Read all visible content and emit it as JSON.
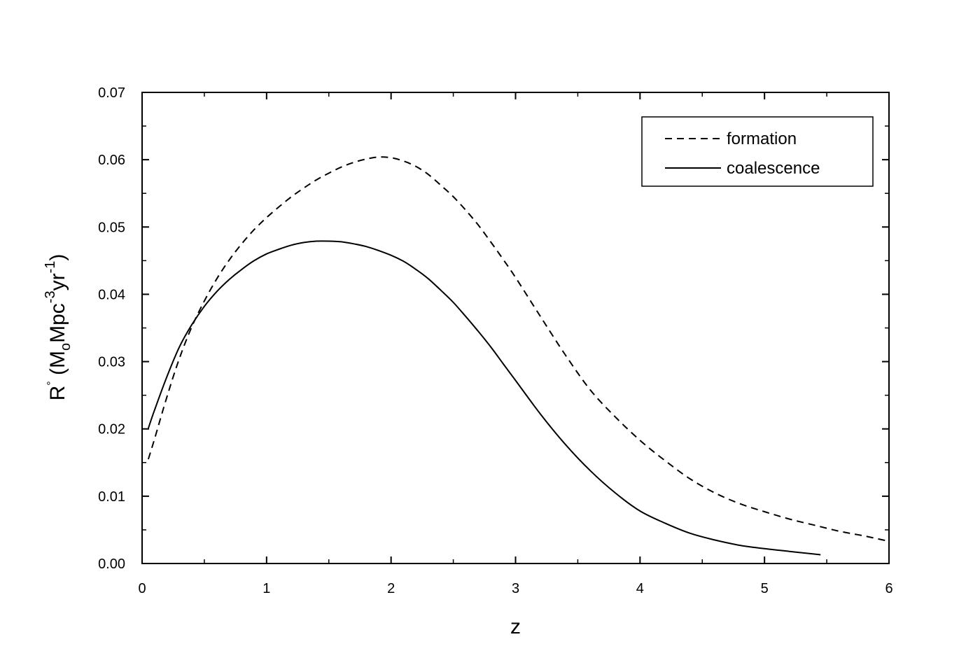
{
  "chart_data": {
    "type": "line",
    "title": "",
    "xlabel": "z",
    "ylabel": {
      "base": "R",
      "sup_dot": "°",
      "open": " (M",
      "sub_o": "o",
      "mid": "Mpc",
      "sup_3": "-3",
      "yr": "yr",
      "sup_1": "-1",
      "close": ")"
    },
    "xlim": [
      0,
      6
    ],
    "ylim": [
      0,
      0.07
    ],
    "x_ticks": [
      0,
      1,
      2,
      3,
      4,
      5,
      6
    ],
    "x_tick_labels": [
      "0",
      "1",
      "2",
      "3",
      "4",
      "5",
      "6"
    ],
    "y_ticks": [
      0,
      0.01,
      0.02,
      0.03,
      0.04,
      0.05,
      0.06,
      0.07
    ],
    "y_tick_labels": [
      "0.00",
      "0.01",
      "0.02",
      "0.03",
      "0.04",
      "0.05",
      "0.06",
      "0.07"
    ],
    "grid": false,
    "legend_position": "top-right",
    "series": [
      {
        "name": "formation",
        "style": "dashed",
        "x": [
          0.05,
          0.1,
          0.2,
          0.3,
          0.4,
          0.5,
          0.6,
          0.7,
          0.8,
          0.9,
          1.0,
          1.1,
          1.2,
          1.3,
          1.4,
          1.5,
          1.6,
          1.7,
          1.8,
          1.9,
          2.0,
          2.1,
          2.2,
          2.3,
          2.4,
          2.5,
          2.6,
          2.7,
          2.8,
          2.9,
          3.0,
          3.2,
          3.4,
          3.6,
          3.8,
          4.0,
          4.2,
          4.4,
          4.6,
          4.8,
          5.0,
          5.2,
          5.4,
          5.6,
          5.8,
          6.0
        ],
        "y": [
          0.0155,
          0.0185,
          0.0248,
          0.0305,
          0.0352,
          0.039,
          0.0423,
          0.0451,
          0.0475,
          0.0496,
          0.0514,
          0.053,
          0.0545,
          0.0558,
          0.057,
          0.058,
          0.0589,
          0.0596,
          0.0601,
          0.0604,
          0.0603,
          0.0598,
          0.059,
          0.0578,
          0.0562,
          0.0545,
          0.0525,
          0.0503,
          0.0478,
          0.0452,
          0.0425,
          0.0367,
          0.031,
          0.0258,
          0.0218,
          0.0183,
          0.0153,
          0.0126,
          0.0105,
          0.0089,
          0.0077,
          0.0066,
          0.0057,
          0.0048,
          0.0041,
          0.0033
        ]
      },
      {
        "name": "coalescence",
        "style": "solid",
        "x": [
          0.05,
          0.1,
          0.2,
          0.3,
          0.4,
          0.5,
          0.6,
          0.7,
          0.8,
          0.9,
          1.0,
          1.1,
          1.2,
          1.3,
          1.4,
          1.5,
          1.6,
          1.7,
          1.8,
          1.9,
          2.0,
          2.1,
          2.2,
          2.3,
          2.4,
          2.5,
          2.6,
          2.7,
          2.8,
          2.9,
          3.0,
          3.2,
          3.4,
          3.6,
          3.8,
          4.0,
          4.2,
          4.4,
          4.6,
          4.8,
          5.0,
          5.2,
          5.4,
          5.45
        ],
        "y": [
          0.0201,
          0.0228,
          0.0278,
          0.0322,
          0.0355,
          0.0382,
          0.0404,
          0.0422,
          0.0437,
          0.045,
          0.046,
          0.0467,
          0.0473,
          0.0477,
          0.0479,
          0.0479,
          0.0478,
          0.0475,
          0.0471,
          0.0465,
          0.0458,
          0.0449,
          0.0437,
          0.0423,
          0.0406,
          0.0388,
          0.0367,
          0.0345,
          0.0322,
          0.0297,
          0.0272,
          0.0222,
          0.0177,
          0.0138,
          0.0105,
          0.0078,
          0.006,
          0.0045,
          0.0035,
          0.0027,
          0.0022,
          0.0018,
          0.0014,
          0.0013
        ]
      }
    ]
  }
}
